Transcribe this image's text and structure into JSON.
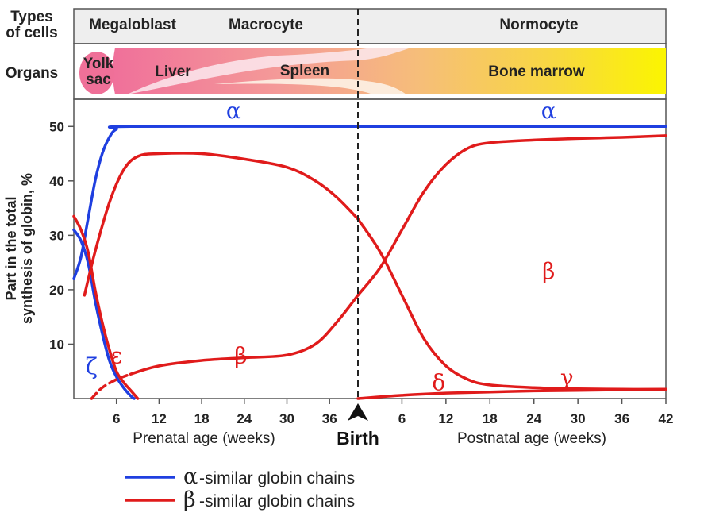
{
  "header": {
    "types_label_line1": "Types",
    "types_label_line2": "of cells",
    "organs_label": "Organs",
    "cell_types": [
      "Megaloblast",
      "Macrocyte",
      "Normocyte"
    ],
    "organs": {
      "yolk_line1": "Yolk",
      "yolk_line2": "sac",
      "liver": "Liver",
      "spleen": "Spleen",
      "bone_marrow": "Bone marrow"
    }
  },
  "chart_data": {
    "type": "line",
    "ylabel_line1": "Part in the total",
    "ylabel_line2": "synthesis of globin, %",
    "xlabel_prenatal": "Prenatal age (weeks)",
    "xlabel_postnatal": "Postnatal age (weeks)",
    "birth_label": "Birth",
    "ylim": [
      0,
      55
    ],
    "yticks": [
      "10",
      "20",
      "30",
      "40",
      "50"
    ],
    "xlim_prenatal": [
      0,
      40
    ],
    "xlim_postnatal": [
      0,
      42
    ],
    "xticks_prenatal": [
      "6",
      "12",
      "18",
      "24",
      "30",
      "36"
    ],
    "xticks_postnatal": [
      "6",
      "12",
      "18",
      "24",
      "30",
      "36",
      "42"
    ],
    "series": [
      {
        "name": "α",
        "family": "alpha",
        "segments": [
          {
            "phase": "prenatal",
            "points": [
              [
                0,
                22
              ],
              [
                1,
                26
              ],
              [
                2,
                33
              ],
              [
                3,
                40
              ],
              [
                4,
                45
              ],
              [
                5,
                48
              ],
              [
                6,
                49.5
              ],
              [
                8,
                50
              ],
              [
                40,
                50
              ]
            ]
          },
          {
            "phase": "postnatal",
            "points": [
              [
                0,
                50
              ],
              [
                42,
                50
              ]
            ]
          }
        ]
      },
      {
        "name": "ζ",
        "family": "alpha",
        "segments": [
          {
            "phase": "prenatal",
            "points": [
              [
                0,
                31
              ],
              [
                1,
                29
              ],
              [
                2,
                25
              ],
              [
                3,
                18
              ],
              [
                4,
                12
              ],
              [
                5,
                7
              ],
              [
                6,
                4
              ],
              [
                7,
                2
              ],
              [
                8,
                0.5
              ],
              [
                8.5,
                0
              ]
            ]
          }
        ]
      },
      {
        "name": "ε",
        "family": "beta",
        "segments": [
          {
            "phase": "prenatal",
            "points": [
              [
                0,
                33.5
              ],
              [
                1,
                31
              ],
              [
                2,
                27
              ],
              [
                3,
                20
              ],
              [
                4,
                14
              ],
              [
                5,
                9
              ],
              [
                6,
                5
              ],
              [
                7,
                3
              ],
              [
                8,
                1.5
              ],
              [
                9,
                0
              ]
            ]
          }
        ]
      },
      {
        "name": "β",
        "family": "beta",
        "segments": [
          {
            "phase": "prenatal",
            "dashed": true,
            "points": [
              [
                2.5,
                0
              ],
              [
                4,
                2
              ],
              [
                6,
                3.5
              ],
              [
                8,
                4.5
              ]
            ]
          },
          {
            "phase": "prenatal",
            "points": [
              [
                8,
                4.5
              ],
              [
                12,
                6
              ],
              [
                18,
                7
              ],
              [
                24,
                7.5
              ],
              [
                30,
                8
              ],
              [
                34,
                10
              ],
              [
                37,
                14
              ],
              [
                40,
                19
              ]
            ]
          },
          {
            "phase": "postnatal",
            "points": [
              [
                0,
                19
              ],
              [
                3,
                24
              ],
              [
                6,
                31
              ],
              [
                9,
                38
              ],
              [
                12,
                43
              ],
              [
                15,
                46
              ],
              [
                18,
                47
              ],
              [
                24,
                47.5
              ],
              [
                30,
                47.8
              ],
              [
                36,
                48
              ],
              [
                42,
                48.3
              ]
            ]
          }
        ]
      },
      {
        "name": "γ",
        "family": "beta",
        "segments": [
          {
            "phase": "prenatal",
            "points": [
              [
                1.5,
                19
              ],
              [
                3,
                27
              ],
              [
                5,
                36
              ],
              [
                7,
                42
              ],
              [
                9,
                44.5
              ],
              [
                12,
                45
              ],
              [
                18,
                45
              ],
              [
                24,
                44
              ],
              [
                30,
                42.5
              ],
              [
                34,
                40
              ],
              [
                37,
                37
              ],
              [
                40,
                33
              ]
            ]
          },
          {
            "phase": "postnatal",
            "points": [
              [
                0,
                33
              ],
              [
                3,
                27
              ],
              [
                6,
                19
              ],
              [
                9,
                11
              ],
              [
                12,
                6
              ],
              [
                15,
                3.5
              ],
              [
                18,
                2.5
              ],
              [
                24,
                2
              ],
              [
                30,
                1.8
              ],
              [
                36,
                1.7
              ],
              [
                42,
                1.7
              ]
            ]
          }
        ]
      },
      {
        "name": "δ",
        "family": "beta",
        "segments": [
          {
            "phase": "postnatal",
            "points": [
              [
                0,
                0
              ],
              [
                6,
                0.6
              ],
              [
                12,
                1
              ],
              [
                18,
                1.2
              ],
              [
                24,
                1.4
              ],
              [
                30,
                1.5
              ],
              [
                36,
                1.6
              ],
              [
                42,
                1.7
              ]
            ]
          }
        ]
      }
    ],
    "series_labels": [
      {
        "text": "α",
        "phase": "prenatal",
        "x": 22.5,
        "y": 51.5,
        "family": "alpha"
      },
      {
        "text": "α",
        "phase": "postnatal",
        "x": 26,
        "y": 51.5,
        "family": "alpha"
      },
      {
        "text": "ζ",
        "phase": "prenatal",
        "x": 2.5,
        "y": 4.5,
        "family": "alpha"
      },
      {
        "text": "ε",
        "phase": "prenatal",
        "x": 6,
        "y": 6.5,
        "family": "beta"
      },
      {
        "text": "β",
        "phase": "prenatal",
        "x": 23.5,
        "y": 6.5,
        "family": "beta"
      },
      {
        "text": "β",
        "phase": "postnatal",
        "x": 26,
        "y": 22,
        "family": "beta"
      },
      {
        "text": "γ",
        "phase": "postnatal",
        "x": 28.5,
        "y": 2.5,
        "family": "beta"
      },
      {
        "text": "δ",
        "phase": "postnatal",
        "x": 11,
        "y": 1.5,
        "family": "beta"
      }
    ],
    "legend": [
      {
        "greek": "α",
        "text": "-similar globin chains",
        "color": "#1f3fe0"
      },
      {
        "greek": "β",
        "text": "-similar globin chains",
        "color": "#e01b1b"
      }
    ],
    "colors": {
      "alpha": "#1f3fe0",
      "beta": "#e01b1b"
    }
  }
}
